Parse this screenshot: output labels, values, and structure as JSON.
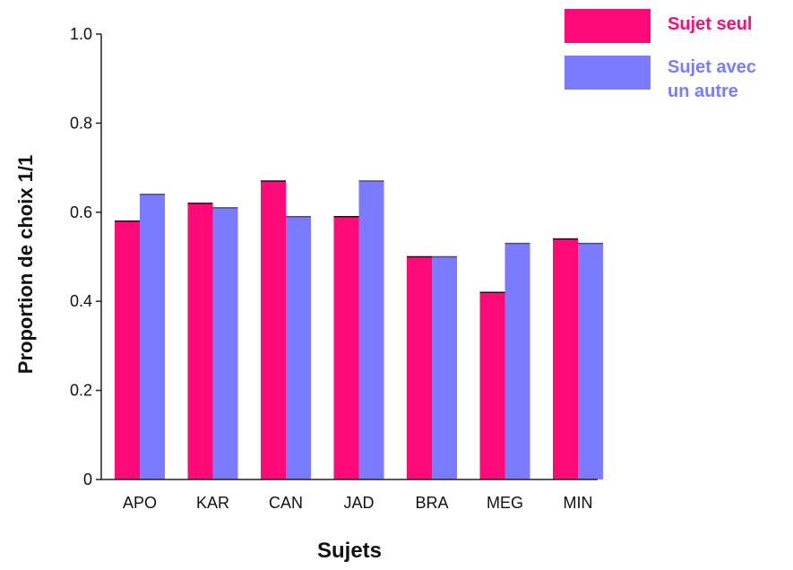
{
  "chart_data": {
    "type": "bar",
    "categories": [
      "APO",
      "KAR",
      "CAN",
      "JAD",
      "BRA",
      "MEG",
      "MIN"
    ],
    "series": [
      {
        "name": "Sujet seul",
        "name_lines": [
          "Sujet seul"
        ],
        "color": "#ff0a78",
        "values": [
          0.58,
          0.62,
          0.67,
          0.59,
          0.5,
          0.42,
          0.54
        ]
      },
      {
        "name": "Sujet avec un autre",
        "name_lines": [
          "Sujet avec",
          "un autre"
        ],
        "color": "#7b7bff",
        "values": [
          0.64,
          0.61,
          0.59,
          0.67,
          0.5,
          0.53,
          0.53
        ]
      }
    ],
    "ylabel": "Proportion de choix 1/1",
    "xlabel": "Sujets",
    "ylim": [
      0,
      1.0
    ],
    "yticks": [
      "0",
      "0.2",
      "0.4",
      "0.6",
      "0.8",
      "1.0"
    ],
    "grid": false,
    "legend_position": "top-right"
  }
}
